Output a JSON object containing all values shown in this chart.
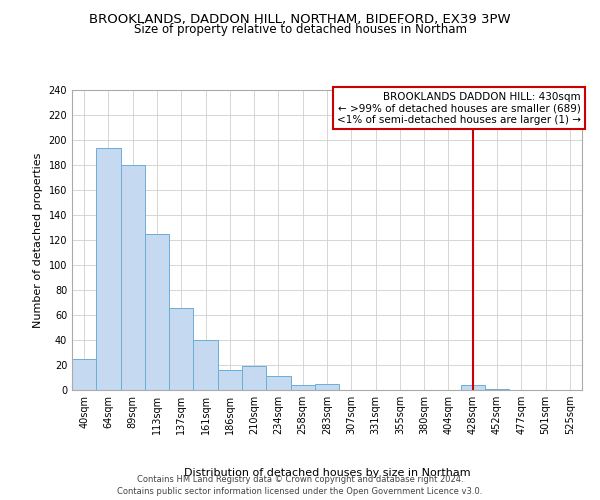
{
  "title": "BROOKLANDS, DADDON HILL, NORTHAM, BIDEFORD, EX39 3PW",
  "subtitle": "Size of property relative to detached houses in Northam",
  "xlabel": "Distribution of detached houses by size in Northam",
  "ylabel": "Number of detached properties",
  "bar_labels": [
    "40sqm",
    "64sqm",
    "89sqm",
    "113sqm",
    "137sqm",
    "161sqm",
    "186sqm",
    "210sqm",
    "234sqm",
    "258sqm",
    "283sqm",
    "307sqm",
    "331sqm",
    "355sqm",
    "380sqm",
    "404sqm",
    "428sqm",
    "452sqm",
    "477sqm",
    "501sqm",
    "525sqm"
  ],
  "bar_values": [
    25,
    194,
    180,
    125,
    66,
    40,
    16,
    19,
    11,
    4,
    5,
    0,
    0,
    0,
    0,
    0,
    4,
    1,
    0,
    0,
    0
  ],
  "bar_color": "#c5d9f0",
  "bar_edge_color": "#6baed6",
  "vline_x_index": 16,
  "vline_color": "#cc0000",
  "ylim": [
    0,
    240
  ],
  "yticks": [
    0,
    20,
    40,
    60,
    80,
    100,
    120,
    140,
    160,
    180,
    200,
    220,
    240
  ],
  "legend_title": "BROOKLANDS DADDON HILL: 430sqm",
  "legend_line1": "← >99% of detached houses are smaller (689)",
  "legend_line2": "<1% of semi-detached houses are larger (1) →",
  "legend_box_color": "#cc0000",
  "footnote1": "Contains HM Land Registry data © Crown copyright and database right 2024.",
  "footnote2": "Contains public sector information licensed under the Open Government Licence v3.0.",
  "grid_color": "#d0d0d0",
  "background_color": "#ffffff",
  "title_fontsize": 9.5,
  "subtitle_fontsize": 8.5,
  "axis_label_fontsize": 8,
  "tick_fontsize": 7,
  "legend_fontsize": 7.5,
  "footnote_fontsize": 6
}
